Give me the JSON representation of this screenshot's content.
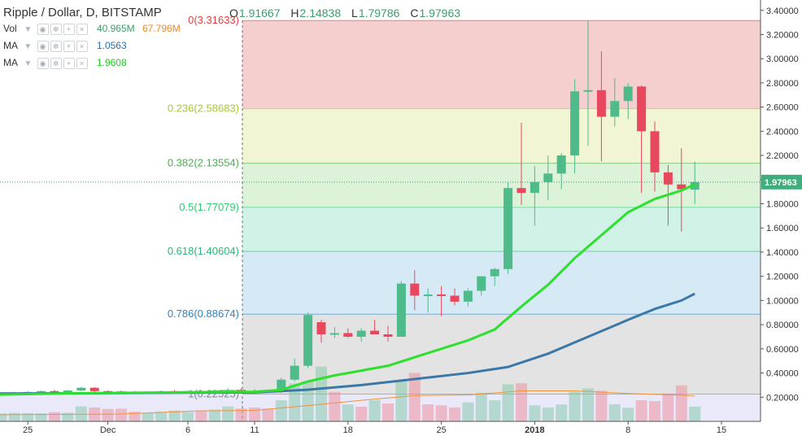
{
  "header": {
    "title": "Ripple / Dollar, D, BITSTAMP",
    "ohlc": [
      {
        "key": "O",
        "value": "1.91667"
      },
      {
        "key": "H",
        "value": "2.14838"
      },
      {
        "key": "L",
        "value": "1.79786"
      },
      {
        "key": "C",
        "value": "1.97963"
      }
    ]
  },
  "indicators": [
    {
      "name": "Vol",
      "values": [
        "40.965M",
        "67.796M"
      ],
      "colors": [
        "#3c9e6b",
        "#e8892d"
      ]
    },
    {
      "name": "MA",
      "values": [
        "1.0563"
      ],
      "colors": [
        "#2e6fa7"
      ]
    },
    {
      "name": "MA",
      "values": [
        "1.9608"
      ],
      "colors": [
        "#1dcc1d"
      ]
    }
  ],
  "colors": {
    "up": "#4fba8a",
    "down": "#e8485e",
    "ma_fast": "#2ee02e",
    "ma_slow": "#3b78a8",
    "vol_ma": "#f0933a"
  },
  "chart_data": {
    "type": "candlestick",
    "symbol": "Ripple / Dollar, D, BITSTAMP",
    "y_axis": {
      "ticks": [
        "3.40000",
        "3.20000",
        "3.00000",
        "2.80000",
        "2.60000",
        "2.40000",
        "2.20000",
        "2.00000",
        "1.80000",
        "1.60000",
        "1.40000",
        "1.20000",
        "1.00000",
        "0.80000",
        "0.60000",
        "0.40000",
        "0.20000"
      ],
      "range": [
        0.0,
        3.44
      ]
    },
    "x_axis": {
      "ticks": [
        "25",
        "Dec",
        "6",
        "11",
        "18",
        "25",
        "2018",
        "8",
        "15"
      ],
      "tick_days": [
        -3,
        3,
        9,
        14,
        21,
        28,
        35,
        42,
        49
      ]
    },
    "last_price_label": "1.97963",
    "fibonacci": {
      "levels": [
        {
          "label": "0(3.31633)",
          "value": 3.31633
        },
        {
          "label": "0.236(2.58683)",
          "value": 2.58683
        },
        {
          "label": "0.382(2.13554)",
          "value": 2.13554
        },
        {
          "label": "0.5(1.77079)",
          "value": 1.77079
        },
        {
          "label": "0.618(1.40604)",
          "value": 1.40604
        },
        {
          "label": "0.786(0.88674)",
          "value": 0.88674
        },
        {
          "label": "1(0.22525)",
          "value": 0.22525
        }
      ],
      "colors": [
        "#e03f3f",
        "#a8c83a",
        "#4caf50",
        "#2ecc71",
        "#31b37a",
        "#2d86c8",
        "#888888"
      ]
    },
    "candles": [
      {
        "d": -8,
        "o": 0.22,
        "h": 0.23,
        "l": 0.21,
        "c": 0.225
      },
      {
        "d": -7,
        "o": 0.225,
        "h": 0.235,
        "l": 0.215,
        "c": 0.228
      },
      {
        "d": -6,
        "o": 0.228,
        "h": 0.24,
        "l": 0.222,
        "c": 0.232
      },
      {
        "d": -5,
        "o": 0.232,
        "h": 0.24,
        "l": 0.226,
        "c": 0.235
      },
      {
        "d": -4,
        "o": 0.235,
        "h": 0.245,
        "l": 0.228,
        "c": 0.238
      },
      {
        "d": -3,
        "o": 0.238,
        "h": 0.25,
        "l": 0.232,
        "c": 0.243
      },
      {
        "d": -2,
        "o": 0.243,
        "h": 0.255,
        "l": 0.236,
        "c": 0.25
      },
      {
        "d": -1,
        "o": 0.25,
        "h": 0.262,
        "l": 0.24,
        "c": 0.244
      },
      {
        "d": 0,
        "o": 0.244,
        "h": 0.26,
        "l": 0.236,
        "c": 0.255
      },
      {
        "d": 1,
        "o": 0.255,
        "h": 0.285,
        "l": 0.25,
        "c": 0.278
      },
      {
        "d": 2,
        "o": 0.278,
        "h": 0.285,
        "l": 0.24,
        "c": 0.25
      },
      {
        "d": 3,
        "o": 0.25,
        "h": 0.258,
        "l": 0.238,
        "c": 0.248
      },
      {
        "d": 4,
        "o": 0.248,
        "h": 0.255,
        "l": 0.238,
        "c": 0.242
      },
      {
        "d": 5,
        "o": 0.242,
        "h": 0.252,
        "l": 0.232,
        "c": 0.236
      },
      {
        "d": 6,
        "o": 0.236,
        "h": 0.248,
        "l": 0.226,
        "c": 0.244
      },
      {
        "d": 7,
        "o": 0.244,
        "h": 0.256,
        "l": 0.236,
        "c": 0.25
      },
      {
        "d": 8,
        "o": 0.25,
        "h": 0.26,
        "l": 0.24,
        "c": 0.246
      },
      {
        "d": 9,
        "o": 0.246,
        "h": 0.255,
        "l": 0.236,
        "c": 0.25
      },
      {
        "d": 10,
        "o": 0.25,
        "h": 0.258,
        "l": 0.24,
        "c": 0.245
      },
      {
        "d": 11,
        "o": 0.245,
        "h": 0.262,
        "l": 0.236,
        "c": 0.255
      },
      {
        "d": 12,
        "o": 0.255,
        "h": 0.275,
        "l": 0.245,
        "c": 0.26
      },
      {
        "d": 13,
        "o": 0.26,
        "h": 0.275,
        "l": 0.245,
        "c": 0.252
      },
      {
        "d": 14,
        "o": 0.252,
        "h": 0.265,
        "l": 0.24,
        "c": 0.25
      },
      {
        "d": 15,
        "o": 0.25,
        "h": 0.262,
        "l": 0.236,
        "c": 0.245
      },
      {
        "d": 16,
        "o": 0.245,
        "h": 0.36,
        "l": 0.235,
        "c": 0.345
      },
      {
        "d": 17,
        "o": 0.345,
        "h": 0.52,
        "l": 0.33,
        "c": 0.46
      },
      {
        "d": 18,
        "o": 0.46,
        "h": 0.9,
        "l": 0.44,
        "c": 0.88
      },
      {
        "d": 19,
        "o": 0.82,
        "h": 0.84,
        "l": 0.65,
        "c": 0.72
      },
      {
        "d": 20,
        "o": 0.72,
        "h": 0.78,
        "l": 0.69,
        "c": 0.73
      },
      {
        "d": 21,
        "o": 0.73,
        "h": 0.77,
        "l": 0.69,
        "c": 0.7
      },
      {
        "d": 22,
        "o": 0.7,
        "h": 0.77,
        "l": 0.66,
        "c": 0.75
      },
      {
        "d": 23,
        "o": 0.75,
        "h": 0.84,
        "l": 0.72,
        "c": 0.72
      },
      {
        "d": 24,
        "o": 0.72,
        "h": 0.79,
        "l": 0.66,
        "c": 0.7
      },
      {
        "d": 25,
        "o": 0.7,
        "h": 1.16,
        "l": 0.7,
        "c": 1.14
      },
      {
        "d": 26,
        "o": 1.14,
        "h": 1.25,
        "l": 0.92,
        "c": 1.04
      },
      {
        "d": 27,
        "o": 1.04,
        "h": 1.1,
        "l": 0.9,
        "c": 1.05
      },
      {
        "d": 28,
        "o": 1.05,
        "h": 1.12,
        "l": 0.87,
        "c": 1.04
      },
      {
        "d": 29,
        "o": 1.04,
        "h": 1.1,
        "l": 0.96,
        "c": 0.99
      },
      {
        "d": 30,
        "o": 0.99,
        "h": 1.1,
        "l": 0.95,
        "c": 1.08
      },
      {
        "d": 31,
        "o": 1.08,
        "h": 1.2,
        "l": 1.04,
        "c": 1.2
      },
      {
        "d": 32,
        "o": 1.2,
        "h": 1.27,
        "l": 1.12,
        "c": 1.26
      },
      {
        "d": 33,
        "o": 1.26,
        "h": 1.98,
        "l": 1.22,
        "c": 1.93
      },
      {
        "d": 34,
        "o": 1.93,
        "h": 2.47,
        "l": 1.79,
        "c": 1.89
      },
      {
        "d": 35,
        "o": 1.89,
        "h": 2.11,
        "l": 1.62,
        "c": 1.98
      },
      {
        "d": 36,
        "o": 1.98,
        "h": 2.2,
        "l": 1.83,
        "c": 2.05
      },
      {
        "d": 37,
        "o": 2.05,
        "h": 2.22,
        "l": 1.92,
        "c": 2.2
      },
      {
        "d": 38,
        "o": 2.2,
        "h": 2.83,
        "l": 2.05,
        "c": 2.73
      },
      {
        "d": 39,
        "o": 2.73,
        "h": 3.32,
        "l": 2.28,
        "c": 2.74
      },
      {
        "d": 40,
        "o": 2.74,
        "h": 3.06,
        "l": 2.15,
        "c": 2.52
      },
      {
        "d": 41,
        "o": 2.52,
        "h": 2.84,
        "l": 2.44,
        "c": 2.65
      },
      {
        "d": 42,
        "o": 2.65,
        "h": 2.8,
        "l": 2.5,
        "c": 2.77
      },
      {
        "d": 43,
        "o": 2.77,
        "h": 2.78,
        "l": 1.89,
        "c": 2.4
      },
      {
        "d": 44,
        "o": 2.4,
        "h": 2.48,
        "l": 1.9,
        "c": 2.06
      },
      {
        "d": 45,
        "o": 2.06,
        "h": 2.12,
        "l": 1.62,
        "c": 1.96
      },
      {
        "d": 46,
        "o": 1.96,
        "h": 2.26,
        "l": 1.57,
        "c": 1.92
      },
      {
        "d": 47,
        "o": 1.91667,
        "h": 2.14838,
        "l": 1.79786,
        "c": 1.97963
      }
    ],
    "volume_range": [
      0,
      680
    ],
    "volume": [
      {
        "d": -8,
        "v": 72,
        "up": false
      },
      {
        "d": -7,
        "v": 70,
        "up": false
      },
      {
        "d": -6,
        "v": 68,
        "up": true
      },
      {
        "d": -5,
        "v": 74,
        "up": true
      },
      {
        "d": -4,
        "v": 80,
        "up": true
      },
      {
        "d": -3,
        "v": 78,
        "up": true
      },
      {
        "d": -2,
        "v": 76,
        "up": true
      },
      {
        "d": -1,
        "v": 88,
        "up": false
      },
      {
        "d": 0,
        "v": 82,
        "up": true
      },
      {
        "d": 1,
        "v": 142,
        "up": true
      },
      {
        "d": 2,
        "v": 132,
        "up": false
      },
      {
        "d": 3,
        "v": 118,
        "up": false
      },
      {
        "d": 4,
        "v": 120,
        "up": false
      },
      {
        "d": 5,
        "v": 92,
        "up": false
      },
      {
        "d": 6,
        "v": 82,
        "up": true
      },
      {
        "d": 7,
        "v": 92,
        "up": true
      },
      {
        "d": 8,
        "v": 102,
        "up": true
      },
      {
        "d": 9,
        "v": 88,
        "up": true
      },
      {
        "d": 10,
        "v": 102,
        "up": false
      },
      {
        "d": 11,
        "v": 112,
        "up": true
      },
      {
        "d": 12,
        "v": 142,
        "up": true
      },
      {
        "d": 13,
        "v": 122,
        "up": false
      },
      {
        "d": 14,
        "v": 132,
        "up": false
      },
      {
        "d": 15,
        "v": 122,
        "up": false
      },
      {
        "d": 16,
        "v": 200,
        "up": true
      },
      {
        "d": 17,
        "v": 360,
        "up": true
      },
      {
        "d": 18,
        "v": 380,
        "up": true
      },
      {
        "d": 19,
        "v": 520,
        "up": true
      },
      {
        "d": 20,
        "v": 280,
        "up": false
      },
      {
        "d": 21,
        "v": 160,
        "up": true
      },
      {
        "d": 22,
        "v": 140,
        "up": false
      },
      {
        "d": 23,
        "v": 200,
        "up": true
      },
      {
        "d": 24,
        "v": 170,
        "up": false
      },
      {
        "d": 25,
        "v": 390,
        "up": true
      },
      {
        "d": 26,
        "v": 460,
        "up": false
      },
      {
        "d": 27,
        "v": 162,
        "up": false
      },
      {
        "d": 28,
        "v": 152,
        "up": false
      },
      {
        "d": 29,
        "v": 132,
        "up": false
      },
      {
        "d": 30,
        "v": 180,
        "up": true
      },
      {
        "d": 31,
        "v": 272,
        "up": true
      },
      {
        "d": 32,
        "v": 200,
        "up": true
      },
      {
        "d": 33,
        "v": 352,
        "up": true
      },
      {
        "d": 34,
        "v": 362,
        "up": false
      },
      {
        "d": 35,
        "v": 152,
        "up": true
      },
      {
        "d": 36,
        "v": 132,
        "up": true
      },
      {
        "d": 37,
        "v": 160,
        "up": true
      },
      {
        "d": 38,
        "v": 280,
        "up": true
      },
      {
        "d": 39,
        "v": 312,
        "up": true
      },
      {
        "d": 40,
        "v": 290,
        "up": false
      },
      {
        "d": 41,
        "v": 162,
        "up": true
      },
      {
        "d": 42,
        "v": 130,
        "up": true
      },
      {
        "d": 43,
        "v": 200,
        "up": false
      },
      {
        "d": 44,
        "v": 192,
        "up": false
      },
      {
        "d": 45,
        "v": 265,
        "up": false
      },
      {
        "d": 46,
        "v": 342,
        "up": false
      },
      {
        "d": 47,
        "v": 140,
        "up": true
      }
    ],
    "ma_fast": [
      {
        "d": -8,
        "y": 0.215
      },
      {
        "d": 0,
        "y": 0.232
      },
      {
        "d": 8,
        "y": 0.24
      },
      {
        "d": 14,
        "y": 0.245
      },
      {
        "d": 16,
        "y": 0.26
      },
      {
        "d": 18,
        "y": 0.33
      },
      {
        "d": 20,
        "y": 0.38
      },
      {
        "d": 22,
        "y": 0.42
      },
      {
        "d": 24,
        "y": 0.46
      },
      {
        "d": 26,
        "y": 0.53
      },
      {
        "d": 28,
        "y": 0.6
      },
      {
        "d": 30,
        "y": 0.67
      },
      {
        "d": 32,
        "y": 0.76
      },
      {
        "d": 34,
        "y": 0.95
      },
      {
        "d": 36,
        "y": 1.13
      },
      {
        "d": 38,
        "y": 1.35
      },
      {
        "d": 40,
        "y": 1.54
      },
      {
        "d": 42,
        "y": 1.73
      },
      {
        "d": 44,
        "y": 1.84
      },
      {
        "d": 46,
        "y": 1.91
      },
      {
        "d": 47,
        "y": 1.9608
      }
    ],
    "ma_slow": [
      {
        "d": -8,
        "y": 0.23
      },
      {
        "d": 0,
        "y": 0.232
      },
      {
        "d": 8,
        "y": 0.236
      },
      {
        "d": 14,
        "y": 0.24
      },
      {
        "d": 18,
        "y": 0.262
      },
      {
        "d": 22,
        "y": 0.3
      },
      {
        "d": 26,
        "y": 0.35
      },
      {
        "d": 30,
        "y": 0.4
      },
      {
        "d": 33,
        "y": 0.45
      },
      {
        "d": 36,
        "y": 0.56
      },
      {
        "d": 39,
        "y": 0.7
      },
      {
        "d": 42,
        "y": 0.84
      },
      {
        "d": 44,
        "y": 0.93
      },
      {
        "d": 46,
        "y": 1.0
      },
      {
        "d": 47,
        "y": 1.0563
      }
    ],
    "vol_ma": [
      {
        "d": -8,
        "v": 60
      },
      {
        "d": 4,
        "v": 70
      },
      {
        "d": 10,
        "v": 100
      },
      {
        "d": 14,
        "v": 104
      },
      {
        "d": 18,
        "v": 150
      },
      {
        "d": 22,
        "v": 200
      },
      {
        "d": 26,
        "v": 245
      },
      {
        "d": 30,
        "v": 250
      },
      {
        "d": 34,
        "v": 290
      },
      {
        "d": 38,
        "v": 290
      },
      {
        "d": 42,
        "v": 265
      },
      {
        "d": 46,
        "v": 248
      },
      {
        "d": 47,
        "v": 240
      }
    ]
  }
}
